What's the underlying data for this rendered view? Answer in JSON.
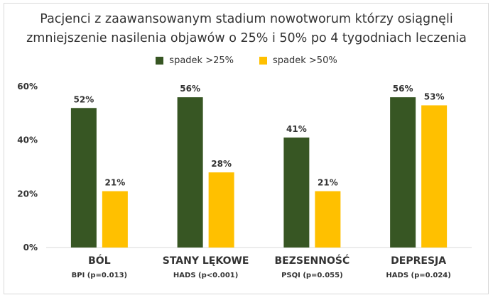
{
  "chart_data": {
    "type": "bar",
    "title_line1": "Pacjenci z zaawansowanym stadium nowotworum którzy osiągnęli",
    "title_line2": "zmniejszenie nasilenia objawów o 25% i 50% po 4 tygodniach leczenia",
    "categories": [
      "BÓL",
      "STANY LĘKOWE",
      "BEZSENNOŚĆ",
      "DEPRESJA"
    ],
    "subcategories": [
      "BPI (p=0.013)",
      "HADS (p<0.001)",
      "PSQI (p=0.055)",
      "HADS (p=0.024)"
    ],
    "series": [
      {
        "name": "spadek >25%",
        "color": "#375623",
        "values": [
          52,
          56,
          41,
          56
        ],
        "labels": [
          "52%",
          "56%",
          "41%",
          "56%"
        ]
      },
      {
        "name": "spadek >50%",
        "color": "#FFC000",
        "values": [
          21,
          28,
          21,
          53
        ],
        "labels": [
          "21%",
          "28%",
          "21%",
          "53%"
        ]
      }
    ],
    "yticks": [
      "0%",
      "20%",
      "40%",
      "60%"
    ],
    "ytick_values": [
      0,
      20,
      40,
      60
    ],
    "ylim": [
      0,
      60
    ],
    "grid": false,
    "legend_position": "top-center"
  }
}
